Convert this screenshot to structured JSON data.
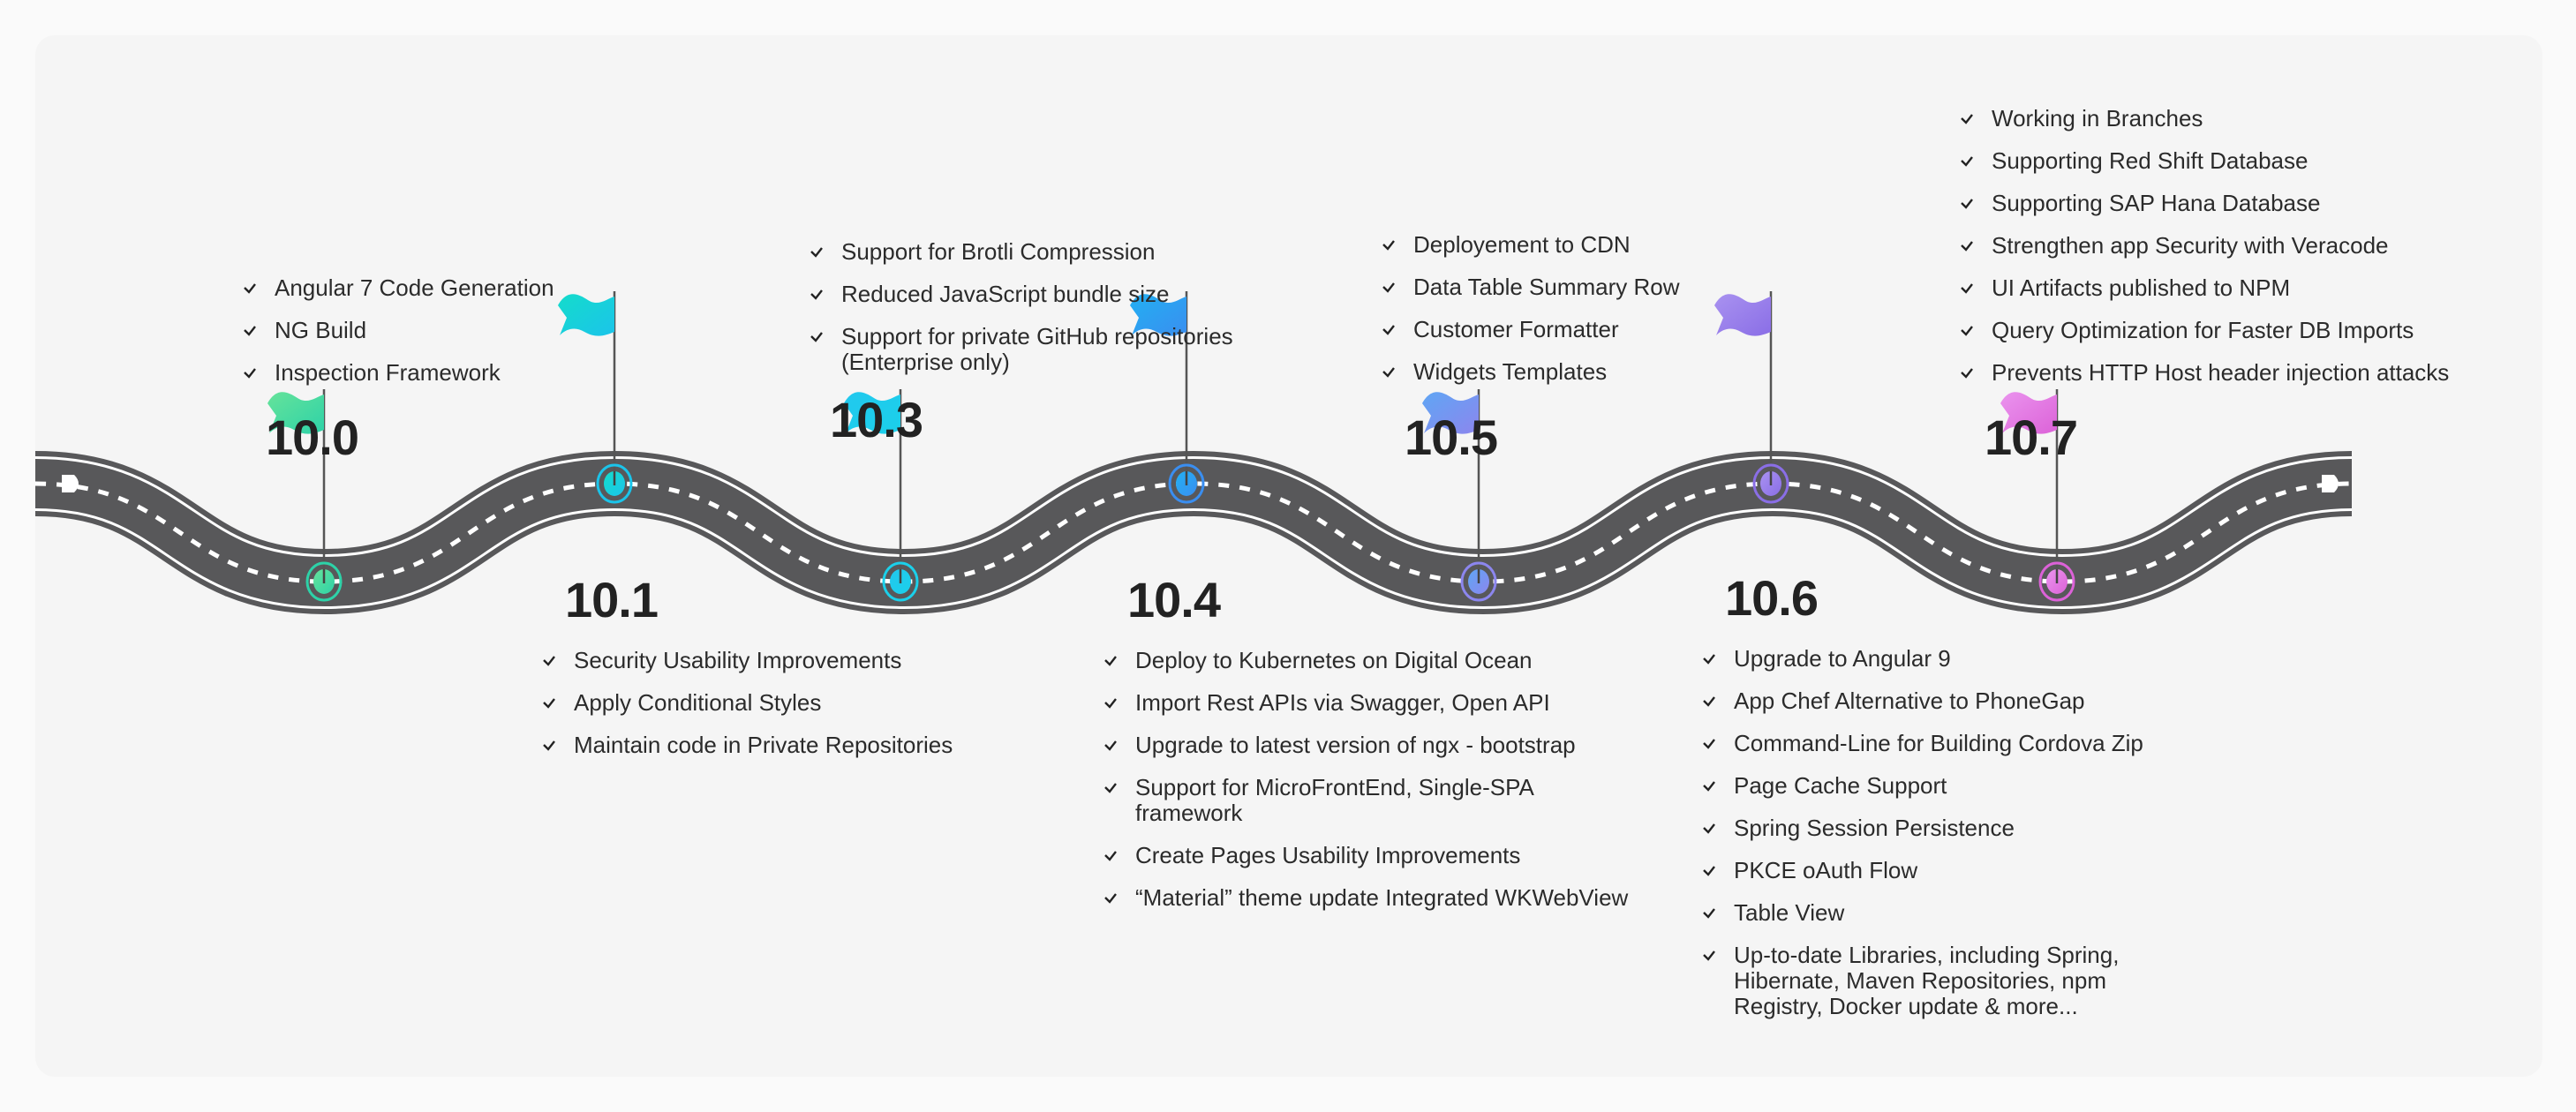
{
  "milestones": [
    {
      "version": "10.0",
      "color": [
        "#66e39a",
        "#2dd2a8"
      ],
      "items": [
        "Angular 7 Code Generation",
        "NG Build",
        "Inspection Framework"
      ]
    },
    {
      "version": "10.1",
      "color": [
        "#14dccb",
        "#1bc4ea"
      ],
      "items": [
        "Security Usability Improvements",
        "Apply Conditional Styles",
        "Maintain code in Private Repositories"
      ]
    },
    {
      "version": "10.3",
      "color": [
        "#22c8ee",
        "#1bd0ea"
      ],
      "items": [
        "Support for Brotli Compression",
        "Reduced JavaScript bundle size",
        "Support for private  GitHub repositories (Enterprise only)"
      ]
    },
    {
      "version": "10.4",
      "color": [
        "#22b0f2",
        "#3a8ef0"
      ],
      "items": [
        "Deploy to Kubernetes on Digital Ocean",
        "Import Rest APIs via Swagger, Open API",
        "Upgrade to latest version of ngx - bootstrap",
        "Support for MicroFrontEnd, Single-SPA framework",
        "Create Pages Usability Improvements",
        "“Material” theme update Integrated WKWebView"
      ]
    },
    {
      "version": "10.5",
      "color": [
        "#5fa6f4",
        "#8c86ee"
      ],
      "items": [
        "Deployement to CDN",
        "Data Table Summary Row",
        "Customer Formatter",
        "Widgets Templates"
      ]
    },
    {
      "version": "10.6",
      "color": [
        "#a992f0",
        "#8a6ee6"
      ],
      "items": [
        "Upgrade to Angular 9",
        "App Chef Alternative to PhoneGap",
        "Command-Line for Building Cordova Zip",
        "Page Cache Support",
        "Spring Session Persistence",
        "PKCE oAuth Flow",
        "Table View",
        "Up-to-date Libraries, including Spring, Hibernate, Maven Repositories, npm Registry, Docker update & more..."
      ]
    },
    {
      "version": "10.7",
      "color": [
        "#ea94ee",
        "#dc62d8"
      ],
      "items": [
        "Working in Branches",
        "Supporting Red Shift Database",
        "Supporting SAP Hana Database",
        "Strengthen app Security with Veracode",
        "UI Artifacts published to NPM",
        "Query Optimization for Faster DB Imports",
        "Prevents HTTP Host header injection attacks"
      ]
    }
  ],
  "colors": {
    "road": "#58585a",
    "lane": "#ffffff",
    "background": "#f5f5f5"
  }
}
